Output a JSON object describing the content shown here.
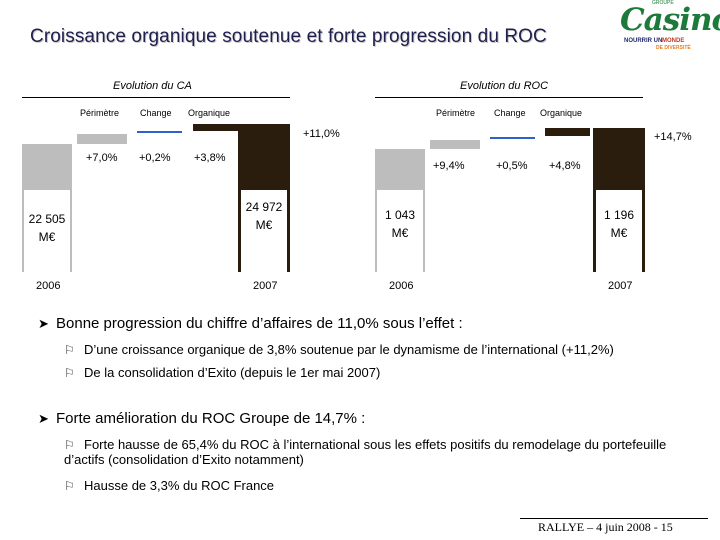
{
  "title": "Croissance organique soutenue et forte progression du ROC",
  "logo": {
    "brand": "Casino",
    "groupe": "GROUPE",
    "tag_a": "NOURRIR UN",
    "tag_b": "MONDE",
    "tag_c": "DE DIVERSITÉ"
  },
  "chart_ca": {
    "title": "Evolution du CA",
    "legend": [
      "Périmètre",
      "Change",
      "Organique"
    ],
    "total_growth": "+11,0%",
    "steps": [
      "+7,0%",
      "+0,2%",
      "+3,8%"
    ],
    "start_value": "22 505\nM€",
    "end_value": "24 972\nM€",
    "start_year": "2006",
    "end_year": "2007"
  },
  "chart_roc": {
    "title": "Evolution du ROC",
    "legend": [
      "Périmètre",
      "Change",
      "Organique"
    ],
    "total_growth": "+14,7%",
    "steps": [
      "+9,4%",
      "+0,5%",
      "+4,8%"
    ],
    "start_value": "1 043\nM€",
    "end_value": "1 196\nM€",
    "start_year": "2006",
    "end_year": "2007"
  },
  "bullets": [
    {
      "text": "Bonne progression du chiffre d’affaires de 11,0% sous l’effet :",
      "subs": [
        "D’une croissance organique de 3,8%  soutenue par le dynamisme de l’international (+11,2%)",
        "De la consolidation d’Exito (depuis le 1er mai 2007)"
      ]
    },
    {
      "text": "Forte amélioration du ROC Groupe de 14,7% :",
      "subs": [
        "Forte hausse de 65,4% du ROC à l’international sous les effets positifs du remodelage du portefeuille d’actifs (consolidation d’Exito notamment)",
        "Hausse de 3,3%  du ROC France"
      ]
    }
  ],
  "footer": "RALLYE – 4 juin 2008 - 15"
}
